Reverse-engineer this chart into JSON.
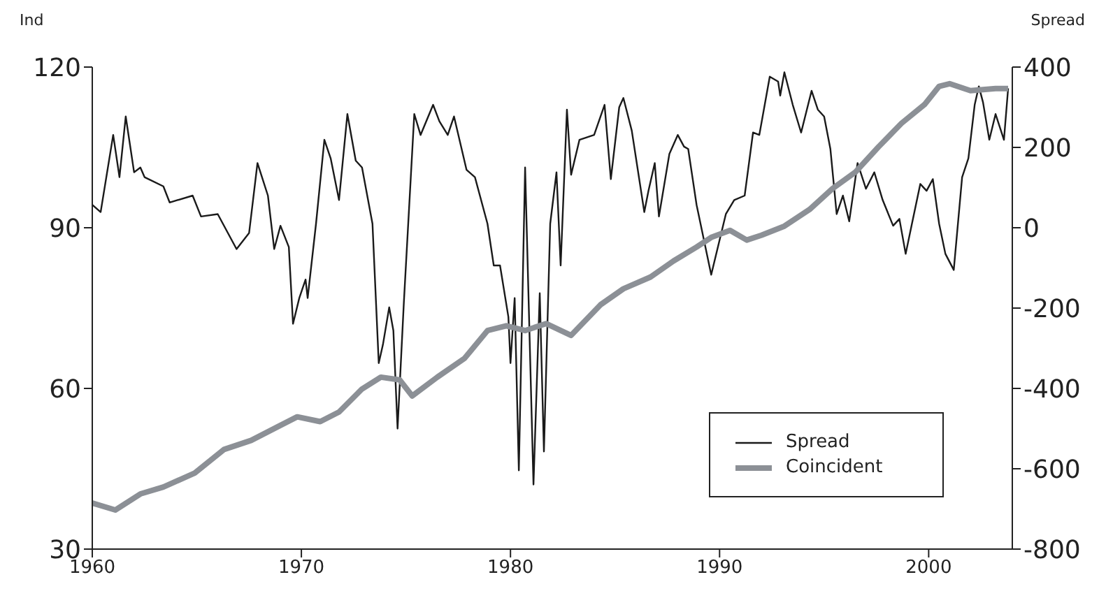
{
  "chart_data": {
    "type": "line",
    "ylabel": "Ind",
    "y2label": "Spread",
    "xlim": [
      1960,
      2004
    ],
    "xticks": [
      1960,
      1970,
      1980,
      1990,
      2000
    ],
    "ylim": [
      30,
      120
    ],
    "yticks": [
      30,
      60,
      90,
      120
    ],
    "y2lim": [
      -800,
      400
    ],
    "y2ticks": [
      -800,
      -600,
      -400,
      -200,
      0,
      200,
      400
    ],
    "grid": false,
    "legend": "bottom right",
    "marker": "none",
    "line_style": "solid",
    "series": [
      {
        "name": "Spread",
        "color": "#1a1a1a",
        "axis": "y2",
        "x": [
          1960.0,
          1960.4,
          1961.0,
          1961.3,
          1961.6,
          1962.0,
          1962.3,
          1962.5,
          1963.4,
          1963.7,
          1964.8,
          1965.2,
          1966.0,
          1966.9,
          1967.5,
          1967.9,
          1968.4,
          1968.7,
          1969.0,
          1969.4,
          1969.6,
          1969.9,
          1970.2,
          1970.3,
          1970.7,
          1971.1,
          1971.4,
          1971.8,
          1972.2,
          1972.6,
          1972.9,
          1973.4,
          1973.7,
          1973.9,
          1974.2,
          1974.4,
          1974.6,
          1974.9,
          1975.4,
          1975.7,
          1976.3,
          1976.6,
          1977.0,
          1977.3,
          1977.9,
          1978.3,
          1978.9,
          1979.2,
          1979.5,
          1979.9,
          1980.0,
          1980.2,
          1980.4,
          1980.7,
          1981.1,
          1981.4,
          1981.6,
          1981.9,
          1982.2,
          1982.4,
          1982.7,
          1982.9,
          1983.3,
          1984.0,
          1984.5,
          1984.8,
          1985.2,
          1985.4,
          1985.8,
          1986.4,
          1986.6,
          1986.9,
          1987.1,
          1987.6,
          1988.0,
          1988.3,
          1988.5,
          1988.9,
          1989.6,
          1990.3,
          1990.7,
          1991.2,
          1991.6,
          1991.9,
          1992.4,
          1992.8,
          1992.9,
          1993.1,
          1993.5,
          1993.9,
          1994.4,
          1994.7,
          1995.0,
          1995.3,
          1995.6,
          1995.9,
          1996.2,
          1996.6,
          1997.0,
          1997.4,
          1997.8,
          1998.3,
          1998.6,
          1998.9,
          1999.2,
          1999.6,
          1999.9,
          2000.2,
          2000.5,
          2000.8,
          2001.2,
          2001.6,
          2001.9,
          2002.2,
          2002.4,
          2002.6,
          2002.9,
          2003.2,
          2003.6,
          2003.8
        ],
        "values": [
          57,
          39,
          231,
          126,
          277,
          138,
          150,
          126,
          103,
          63,
          80,
          28,
          34,
          -53,
          -13,
          161,
          80,
          -53,
          5,
          -48,
          -239,
          -175,
          -129,
          -175,
          10,
          219,
          173,
          69,
          283,
          167,
          150,
          10,
          -337,
          -291,
          -198,
          -256,
          -500,
          -187,
          283,
          231,
          306,
          265,
          231,
          277,
          144,
          126,
          10,
          -94,
          -94,
          -222,
          -337,
          -175,
          -604,
          150,
          -639,
          -163,
          -557,
          10,
          138,
          -94,
          294,
          132,
          219,
          231,
          306,
          121,
          300,
          323,
          242,
          39,
          92,
          161,
          28,
          184,
          231,
          202,
          196,
          57,
          -117,
          34,
          69,
          80,
          237,
          231,
          376,
          364,
          329,
          387,
          306,
          237,
          341,
          294,
          277,
          196,
          34,
          80,
          16,
          161,
          97,
          138,
          69,
          5,
          22,
          -65,
          10,
          109,
          92,
          121,
          10,
          -65,
          -105,
          126,
          173,
          306,
          352,
          312,
          219,
          283,
          219,
          347
        ]
      },
      {
        "name": "Coincident",
        "color": "#8c9096",
        "x": [
          1960.0,
          1961.1,
          1962.3,
          1963.4,
          1964.9,
          1966.3,
          1967.6,
          1968.9,
          1969.8,
          1970.9,
          1971.8,
          1972.9,
          1973.8,
          1974.7,
          1975.3,
          1976.5,
          1977.8,
          1978.9,
          1979.8,
          1980.7,
          1981.7,
          1982.9,
          1984.3,
          1985.4,
          1986.7,
          1987.8,
          1988.9,
          1989.6,
          1990.5,
          1991.3,
          1992.0,
          1993.1,
          1994.3,
          1995.4,
          1996.5,
          1997.6,
          1998.7,
          1999.8,
          2000.5,
          2001.0,
          2002.0,
          2003.2,
          2003.8
        ],
        "values": [
          38.6,
          37.3,
          40.3,
          41.6,
          44.2,
          48.6,
          50.3,
          52.9,
          54.7,
          53.8,
          55.6,
          59.9,
          62.1,
          61.6,
          58.6,
          62.1,
          65.6,
          70.8,
          71.7,
          70.8,
          72.1,
          69.9,
          75.6,
          78.6,
          80.8,
          83.8,
          86.4,
          88.2,
          89.5,
          87.7,
          88.6,
          90.3,
          93.4,
          97.3,
          100.4,
          105.1,
          109.5,
          113.0,
          116.4,
          116.9,
          115.6,
          116.0,
          116.0
        ]
      }
    ]
  }
}
